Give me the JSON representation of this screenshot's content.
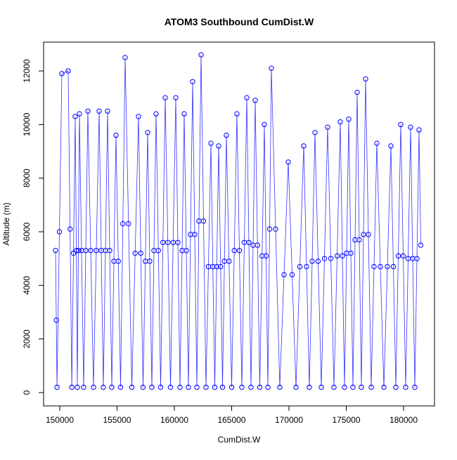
{
  "chart_data": {
    "type": "line",
    "title": "ATOM3 Southbound CumDist.W",
    "x_label": "CumDist.W",
    "y_label": "Altitude (m)",
    "color": "#0000ff",
    "marker": "circle",
    "x": [
      149632,
      149700,
      149760,
      149970,
      150184,
      150736,
      150900,
      151050,
      151200,
      151350,
      151450,
      151534,
      151626,
      151718,
      151900,
      152086,
      152270,
      152454,
      152700,
      152945,
      153190,
      153436,
      153620,
      153804,
      153988,
      154172,
      154356,
      154540,
      154724,
      154908,
      155108,
      155307,
      155506,
      155706,
      156000,
      156288,
      156580,
      156871,
      157070,
      157270,
      157470,
      157669,
      157853,
      158037,
      158221,
      158405,
      158605,
      158804,
      159004,
      159203,
      159433,
      159663,
      159893,
      160123,
      160307,
      160491,
      160675,
      160859,
      161043,
      161227,
      161411,
      161595,
      161779,
      161963,
      162147,
      162331,
      162546,
      162760,
      162975,
      163190,
      163359,
      163528,
      163697,
      163865,
      164034,
      164203,
      164372,
      164540,
      164770,
      165000,
      165230,
      165460,
      165675,
      165890,
      166105,
      166319,
      166503,
      166687,
      166871,
      167055,
      167255,
      167454,
      167654,
      167853,
      168006,
      168160,
      168313,
      168466,
      168835,
      169200,
      169570,
      169939,
      170276,
      170614,
      170950,
      171288,
      171533,
      171779,
      172025,
      172270,
      172546,
      172822,
      173098,
      173374,
      173650,
      173926,
      174202,
      174478,
      174662,
      174846,
      175030,
      175215,
      175399,
      175583,
      175767,
      175951,
      176135,
      176319,
      176503,
      176687,
      176932,
      177178,
      177423,
      177668,
      177975,
      178282,
      178589,
      178895,
      179110,
      179325,
      179540,
      179755,
      179970,
      180185,
      180400,
      180614,
      180798,
      180982,
      181166,
      181350,
      181500
    ],
    "values": [
      5300,
      2700,
      200,
      6000,
      11900,
      12000,
      6100,
      200,
      5200,
      10300,
      5300,
      200,
      5300,
      10400,
      5300,
      200,
      5300,
      10500,
      5300,
      200,
      5300,
      10500,
      5300,
      200,
      5300,
      10500,
      5300,
      200,
      4900,
      9600,
      4900,
      200,
      6300,
      12500,
      6300,
      200,
      5200,
      10300,
      5200,
      200,
      4900,
      9700,
      4900,
      200,
      5300,
      10400,
      5300,
      200,
      5600,
      11000,
      5600,
      200,
      5600,
      11000,
      5600,
      200,
      5300,
      10400,
      5300,
      200,
      5900,
      11600,
      5900,
      200,
      6400,
      12600,
      6400,
      200,
      4700,
      9300,
      4700,
      200,
      4700,
      9200,
      4700,
      200,
      4900,
      9600,
      4900,
      200,
      5300,
      10400,
      5300,
      200,
      5600,
      11000,
      5600,
      200,
      5500,
      10900,
      5500,
      200,
      5100,
      10000,
      5100,
      200,
      6100,
      12100,
      6100,
      200,
      4400,
      8600,
      4400,
      200,
      4700,
      9200,
      4700,
      200,
      4900,
      9700,
      4900,
      200,
      5000,
      9900,
      5000,
      200,
      5100,
      10100,
      5100,
      200,
      5200,
      10200,
      5200,
      200,
      5700,
      11200,
      5700,
      200,
      5900,
      11700,
      5900,
      200,
      4700,
      9300,
      4700,
      200,
      4700,
      9200,
      4700,
      200,
      5100,
      10000,
      5100,
      200,
      5000,
      9900,
      5000,
      200,
      5000,
      9800,
      5500
    ],
    "xlim": [
      148590,
      182700
    ],
    "ylim": [
      -498,
      13075
    ],
    "xticks": [
      150000,
      155000,
      160000,
      165000,
      170000,
      175000,
      180000
    ],
    "yticks": [
      0,
      2000,
      4000,
      6000,
      8000,
      10000,
      12000
    ]
  }
}
